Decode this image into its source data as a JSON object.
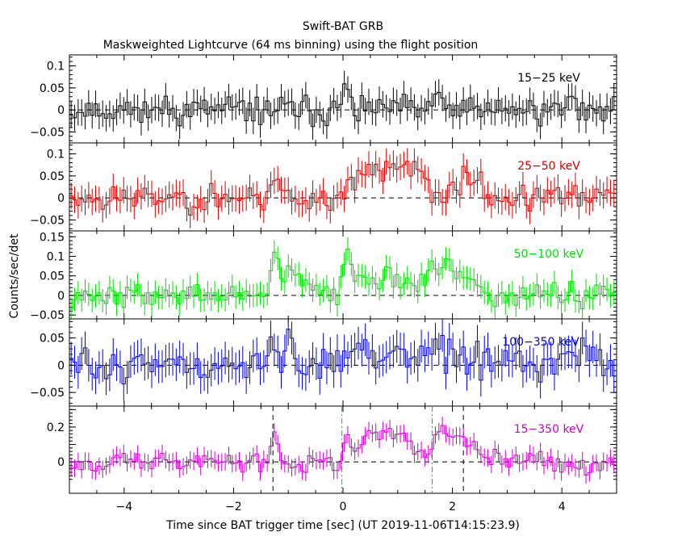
{
  "title": "Swift-BAT GRB",
  "subtitle": "Maskweighted Lightcurve (64 ms binning) using the flight position",
  "ylabel": "Counts/sec/det",
  "xlabel": "Time since BAT trigger time [sec] (UT 2019-11-06T14:15:23.9)",
  "colors": {
    "axis": "#000000",
    "zero_line": "#000000",
    "t_marker": "#000000",
    "duration_marker": "#00cc00"
  },
  "chart_data": [
    {
      "type": "line",
      "name": "15-25 keV",
      "color": "#000000",
      "xlim": [
        -5.0,
        5.0
      ],
      "ylim": [
        -0.075,
        0.125
      ],
      "yticks": [
        -0.05,
        0,
        0.05,
        0.1
      ],
      "ytick_labels": [
        "−0.05",
        "0",
        "0.05",
        "0.1"
      ],
      "xticks": [
        -4,
        -2,
        0,
        2,
        4
      ],
      "xtick_labels": [],
      "bin_width": 0.064,
      "error": 0.03,
      "seed": 11,
      "amplitude": 0.022,
      "pulses": [
        [
          0.05,
          0.06,
          0.06
        ],
        [
          1.7,
          0.04,
          0.07
        ],
        [
          4.2,
          0.04,
          0.1
        ]
      ]
    },
    {
      "type": "line",
      "name": "25-50 keV",
      "color": "#cc0000",
      "xlim": [
        -5.0,
        5.0
      ],
      "ylim": [
        -0.075,
        0.125
      ],
      "yticks": [
        -0.05,
        0,
        0.05,
        0.1
      ],
      "ytick_labels": [
        "−0.05",
        "0",
        "0.05",
        "0.1"
      ],
      "xticks": [
        -4,
        -2,
        0,
        2,
        4
      ],
      "xtick_labels": [],
      "bin_width": 0.064,
      "error": 0.03,
      "seed": 23,
      "amplitude": 0.022,
      "pulses": [
        [
          -1.25,
          0.04,
          0.15
        ],
        [
          0.45,
          0.08,
          0.25
        ],
        [
          1.3,
          0.06,
          0.3
        ],
        [
          2.3,
          0.05,
          0.25
        ],
        [
          0.9,
          0.05,
          0.25
        ]
      ]
    },
    {
      "type": "line",
      "name": "50-100 keV",
      "color": "#00dd00",
      "xlim": [
        -5.0,
        5.0
      ],
      "ylim": [
        -0.06,
        0.165
      ],
      "yticks": [
        -0.05,
        0,
        0.05,
        0.1,
        0.15
      ],
      "ytick_labels": [
        "−0.05",
        "0",
        "0.05",
        "0.1",
        "0.15"
      ],
      "xticks": [
        -4,
        -2,
        0,
        2,
        4
      ],
      "xtick_labels": [],
      "bin_width": 0.064,
      "error": 0.03,
      "seed": 37,
      "amplitude": 0.022,
      "pulses": [
        [
          -1.25,
          0.1,
          0.08
        ],
        [
          -0.9,
          0.05,
          0.3
        ],
        [
          0.05,
          0.12,
          0.08
        ],
        [
          0.4,
          0.06,
          0.3
        ],
        [
          1.0,
          0.05,
          0.3
        ],
        [
          2.1,
          0.05,
          0.3
        ],
        [
          1.7,
          0.05,
          0.3
        ]
      ]
    },
    {
      "type": "line",
      "name": "100-350 keV",
      "color": "#0000cc",
      "xlim": [
        -5.0,
        5.0
      ],
      "ylim": [
        -0.075,
        0.085
      ],
      "yticks": [
        -0.05,
        0,
        0.05
      ],
      "ytick_labels": [
        "−0.05",
        "0",
        "0.05"
      ],
      "xticks": [
        -4,
        -2,
        0,
        2,
        4
      ],
      "xtick_labels": [],
      "bin_width": 0.064,
      "error": 0.03,
      "seed": 51,
      "amplitude": 0.022,
      "pulses": [
        [
          -1.3,
          0.03,
          0.2
        ],
        [
          -1.0,
          0.06,
          0.08
        ],
        [
          0.3,
          0.03,
          0.3
        ],
        [
          1.0,
          0.03,
          0.3
        ],
        [
          1.7,
          0.03,
          0.3
        ],
        [
          4.5,
          0.03,
          0.2
        ]
      ]
    },
    {
      "type": "line",
      "name": "15-350 keV",
      "color": "#cc00cc",
      "xlim": [
        -5.0,
        5.0
      ],
      "ylim": [
        -0.18,
        0.32
      ],
      "yticks": [
        0,
        0.1,
        0.2,
        0.3
      ],
      "ytick_labels": [
        "0",
        "",
        "0.2",
        ""
      ],
      "xticks": [
        -4,
        -2,
        0,
        2,
        4
      ],
      "xtick_labels": [
        "−4",
        "−2",
        "0",
        "2",
        "4"
      ],
      "bin_width": 0.064,
      "error": 0.05,
      "seed": 67,
      "amplitude": 0.04,
      "pulses": [
        [
          -1.25,
          0.22,
          0.08
        ],
        [
          0.05,
          0.2,
          0.06
        ],
        [
          0.5,
          0.15,
          0.3
        ],
        [
          1.0,
          0.14,
          0.35
        ],
        [
          1.75,
          0.2,
          0.12
        ],
        [
          2.1,
          0.15,
          0.3
        ]
      ],
      "markers": [
        {
          "x": -1.28,
          "style": "t"
        },
        {
          "x": -0.02,
          "style": "duration"
        },
        {
          "x": 1.63,
          "style": "duration"
        },
        {
          "x": 2.2,
          "style": "t"
        }
      ]
    }
  ]
}
